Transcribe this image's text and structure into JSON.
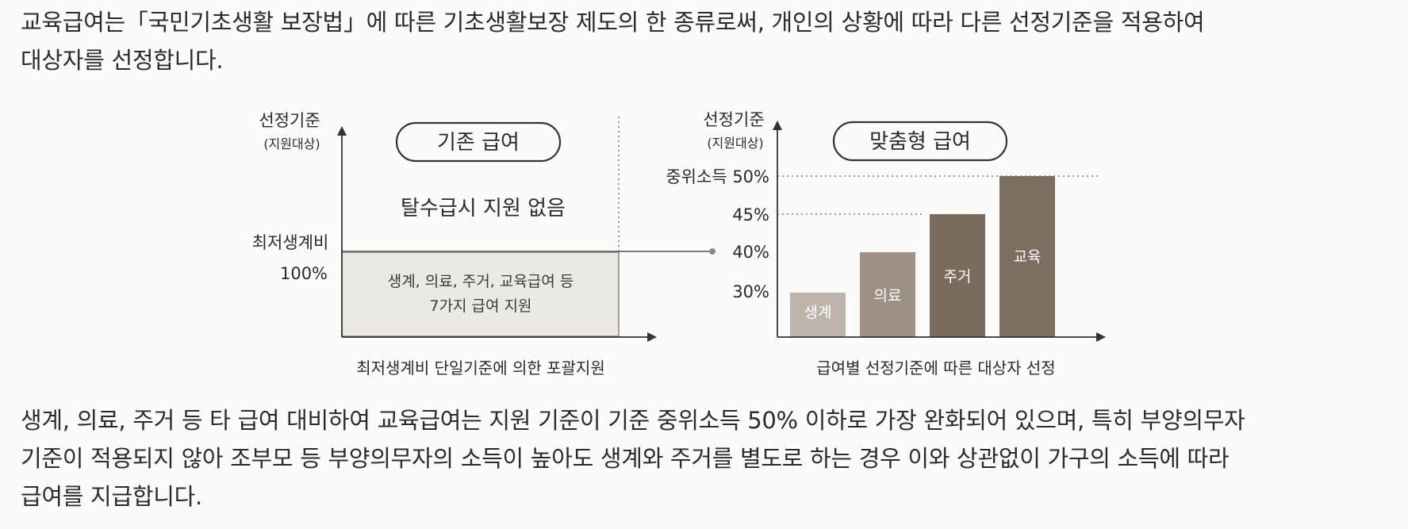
{
  "intro": {
    "lines": [
      "교육급여는「국민기초생활 보장법」에 따른 기초생활보장 제도의 한 종류로써, 개인의 상황에 따라 다른 선정기준을 적용하여",
      "대상자를 선정합니다."
    ]
  },
  "left_chart": {
    "title": "기존 급여",
    "y_label": "선정기준",
    "y_sublabel": "(지원대상)",
    "no_support_text": "탈수급시 지원 없음",
    "threshold_label_1": "최저생계비",
    "threshold_label_2": "100%",
    "box_line_1": "생계, 의료, 주거, 교육급여 등",
    "box_line_2": "7가지 급여 지원",
    "x_caption": "최저생계비 단일기준에 의한 포괄지원"
  },
  "right_chart": {
    "title": "맞춤형 급여",
    "y_label": "선정기준",
    "y_sublabel": "(지원대상)",
    "x_caption": "급여별 선정기준에 따른 대상자 선정",
    "ticks": [
      "중위소득 50%",
      "45%",
      "40%",
      "30%"
    ],
    "bars": [
      {
        "label": "생계",
        "value": 30,
        "color": "#bcb3ab"
      },
      {
        "label": "의료",
        "value": 40,
        "color": "#9d9085"
      },
      {
        "label": "주거",
        "value": 45,
        "color": "#7a6b5f"
      },
      {
        "label": "교육",
        "value": 50,
        "color": "#7d6e62"
      }
    ]
  },
  "body": {
    "lines": [
      "생계, 의료, 주거 등 타 급여 대비하여 교육급여는 지원 기준이 기준 중위소득 50% 이하로 가장 완화되어 있으며, 특히 부양의무자",
      "기준이 적용되지 않아 조부모 등 부양의무자의 소득이 높아도 생계와 주거를 별도로 하는 경우 이와 상관없이 가구의 소득에 따라",
      "급여를 지급합니다."
    ]
  }
}
